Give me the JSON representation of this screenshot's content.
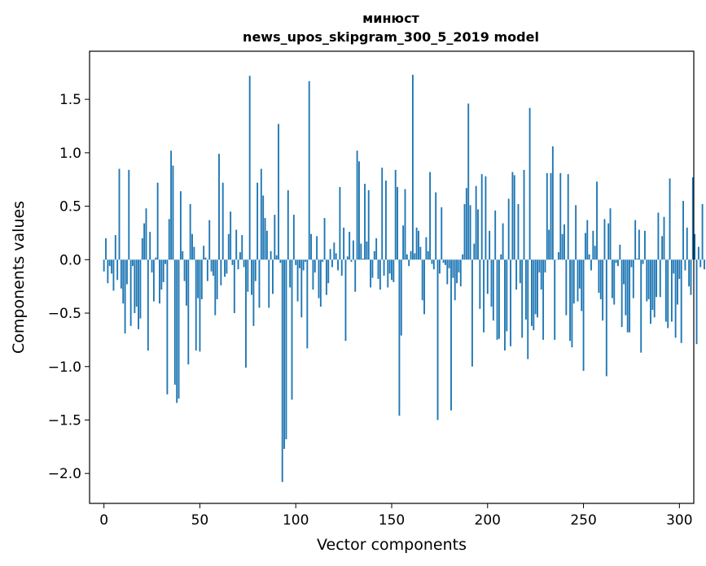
{
  "chart_data": {
    "type": "bar",
    "title": "минюст",
    "subtitle": "news_upos_skipgram_300_5_2019 model",
    "xlabel": "Vector components",
    "ylabel": "Components values",
    "xlim": [
      -7.5,
      307.5
    ],
    "ylim": [
      -2.28,
      1.95
    ],
    "xticks": [
      0,
      50,
      100,
      150,
      200,
      250,
      300
    ],
    "xtick_labels": [
      "0",
      "50",
      "100",
      "150",
      "200",
      "250",
      "300"
    ],
    "yticks": [
      -2.0,
      -1.5,
      -1.0,
      -0.5,
      0.0,
      0.5,
      1.0,
      1.5
    ],
    "ytick_labels": [
      "−2.0",
      "−1.5",
      "−1.0",
      "−0.5",
      "0.0",
      "0.5",
      "1.0",
      "1.5"
    ],
    "bar_color": "#1f77b4",
    "grid": false,
    "values": [
      -0.11,
      0.2,
      -0.22,
      -0.06,
      -0.13,
      -0.29,
      0.23,
      -0.19,
      0.85,
      -0.27,
      -0.41,
      -0.69,
      -0.23,
      0.84,
      -0.62,
      -0.06,
      -0.5,
      -0.44,
      -0.65,
      -0.55,
      0.2,
      0.34,
      0.48,
      -0.85,
      0.26,
      -0.12,
      -0.39,
      0.02,
      0.72,
      -0.41,
      -0.28,
      -0.21,
      -0.04,
      -1.26,
      0.38,
      1.02,
      0.88,
      -1.17,
      -1.34,
      -1.3,
      0.64,
      0.08,
      -0.2,
      -0.43,
      -0.98,
      0.52,
      0.24,
      0.12,
      -0.85,
      -0.36,
      -0.86,
      -0.37,
      0.13,
      0.02,
      -0.2,
      0.37,
      -0.11,
      -0.15,
      -0.52,
      -0.37,
      0.99,
      -0.24,
      0.72,
      -0.16,
      -0.13,
      0.24,
      0.45,
      -0.05,
      -0.5,
      0.28,
      -0.09,
      0.07,
      0.23,
      -0.07,
      -1.01,
      -0.3,
      1.72,
      -0.33,
      -0.62,
      -0.2,
      0.72,
      -0.45,
      0.85,
      0.6,
      0.39,
      0.27,
      -0.45,
      0.08,
      -0.32,
      0.42,
      0.04,
      1.27,
      -0.03,
      -2.08,
      -1.77,
      -1.68,
      0.65,
      -0.26,
      -1.31,
      0.42,
      -0.05,
      -0.39,
      -0.08,
      -0.54,
      -0.1,
      -0.02,
      -0.83,
      1.67,
      0.24,
      -0.28,
      -0.12,
      0.22,
      -0.36,
      -0.44,
      -0.02,
      0.39,
      -0.33,
      -0.22,
      0.1,
      -0.07,
      0.16,
      0.06,
      -0.1,
      0.68,
      -0.15,
      0.3,
      -0.76,
      0.03,
      0.26,
      -0.02,
      0.18,
      -0.3,
      1.02,
      0.92,
      0.15,
      0.01,
      0.71,
      0.17,
      0.65,
      -0.26,
      -0.17,
      0.08,
      0.2,
      -0.18,
      -0.28,
      0.86,
      -0.15,
      0.74,
      -0.26,
      -0.13,
      -0.19,
      -0.21,
      0.84,
      0.68,
      -1.46,
      -0.71,
      0.32,
      0.66,
      0.05,
      -0.06,
      0.08,
      1.73,
      0.06,
      0.3,
      0.27,
      0.12,
      -0.38,
      -0.51,
      0.21,
      0.08,
      0.82,
      -0.04,
      -0.09,
      0.63,
      -1.5,
      -0.13,
      0.49,
      -0.03,
      -0.05,
      -0.23,
      -0.08,
      -1.41,
      -0.17,
      -0.38,
      -0.22,
      -0.12,
      -0.25,
      0.05,
      0.52,
      0.67,
      1.46,
      0.51,
      -1.0,
      0.15,
      0.69,
      0.47,
      -0.46,
      0.8,
      -0.68,
      0.78,
      -0.32,
      0.27,
      -0.44,
      -0.57,
      0.46,
      -0.75,
      -0.74,
      0.05,
      0.34,
      -0.85,
      -0.67,
      0.57,
      -0.81,
      0.82,
      0.79,
      -0.28,
      0.52,
      -0.22,
      -0.73,
      0.84,
      -0.56,
      -0.93,
      1.42,
      -0.62,
      -0.66,
      -0.51,
      -0.54,
      -0.12,
      -0.28,
      -0.75,
      -0.12,
      0.81,
      0.28,
      0.81,
      1.06,
      -0.75,
      0.0,
      0.07,
      0.81,
      0.24,
      0.33,
      -0.52,
      0.8,
      -0.76,
      -0.82,
      -0.41,
      0.51,
      -0.39,
      -0.27,
      -0.48,
      -1.04,
      0.25,
      0.37,
      0.05,
      -0.1,
      0.27,
      0.13,
      0.73,
      -0.31,
      -0.37,
      -0.57,
      0.38,
      -1.09,
      0.34,
      0.48,
      -0.36,
      -0.42,
      -0.03,
      -0.06,
      0.14,
      -0.63,
      -0.23,
      -0.52,
      -0.68,
      -0.68,
      -0.07,
      -0.36,
      0.37,
      0.01,
      0.28,
      -0.87,
      -0.04,
      0.27,
      -0.39,
      -0.37,
      -0.6,
      -0.47,
      -0.54,
      -0.35,
      0.44,
      -0.35,
      0.22,
      0.4,
      -0.58,
      -0.64,
      0.76,
      -0.58,
      -0.13,
      -0.73,
      -0.42,
      -0.18,
      -0.78,
      0.55,
      -0.1,
      0.3,
      -0.25,
      -0.33,
      0.77,
      0.24,
      -0.79,
      0.12,
      -0.07,
      0.52,
      -0.09
    ]
  }
}
